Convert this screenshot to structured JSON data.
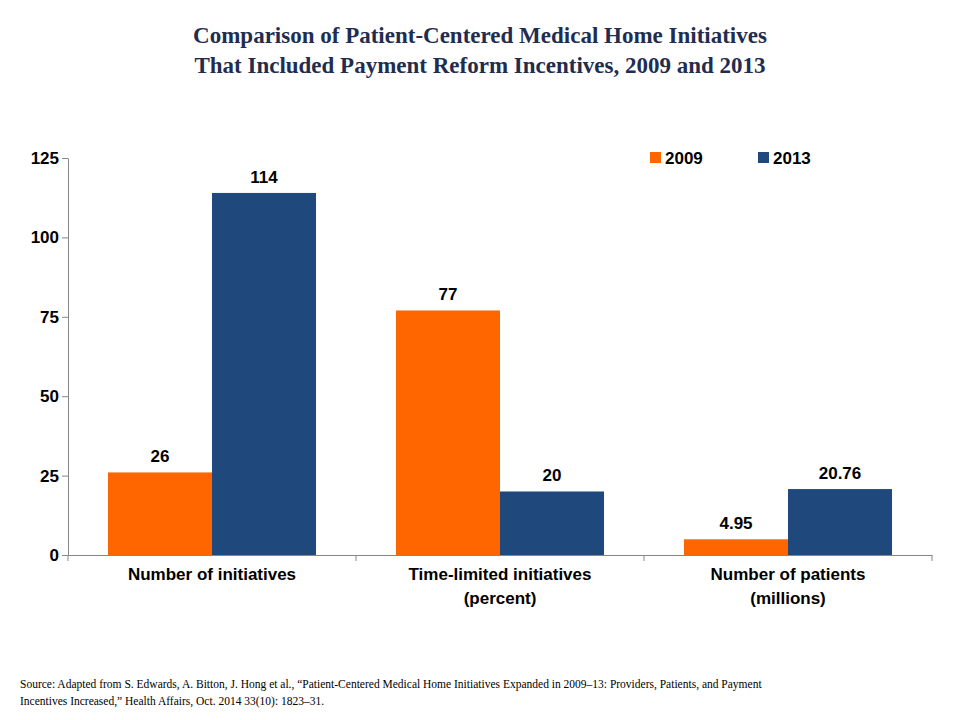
{
  "chart_data": {
    "type": "bar",
    "title": [
      "Comparison of Patient-Centered Medical Home Initiatives",
      "That Included Payment Reform Incentives, 2009 and 2013"
    ],
    "categories": [
      "Number of initiatives",
      "Time-limited initiatives\n(percent)",
      "Number of patients\n(millions)"
    ],
    "series": [
      {
        "name": "2009",
        "color": "#ff6600",
        "values": [
          26,
          77,
          4.95
        ]
      },
      {
        "name": "2013",
        "color": "#1f497d",
        "values": [
          114,
          20,
          20.76
        ]
      }
    ],
    "ylim": [
      0,
      125
    ],
    "yticks": [
      0,
      25,
      50,
      75,
      100,
      125
    ],
    "grid": false,
    "legend": "top-right",
    "data_labels": true,
    "annotations": [
      "Source: Adapted from S. Edwards, A. Bitton, J. Hong et al., “Patient-Centered  Medical Home Initiatives Expanded  in 2009–13: Providers, Patients, and Payment",
      "Incentives Increased,” Health Affairs, Oct. 2014 33(10): 1823–31."
    ]
  }
}
